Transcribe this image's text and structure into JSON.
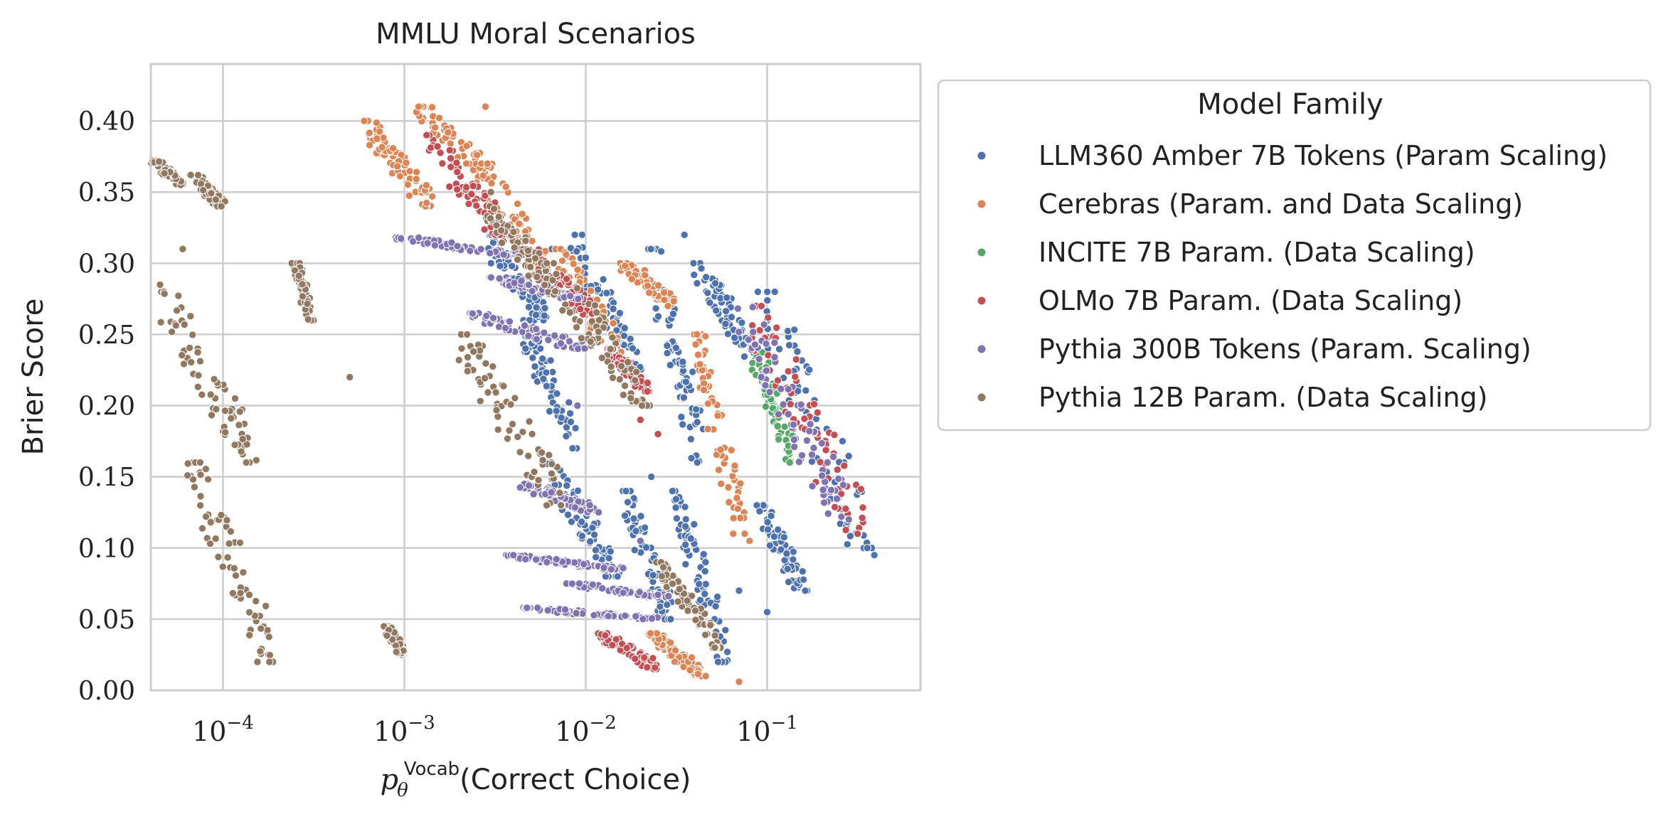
{
  "chart_data": {
    "type": "scatter",
    "title": "MMLU Moral Scenarios",
    "xlabel": {
      "prefix": "p",
      "sub": "θ",
      "sup": "Vocab",
      "text": "(Correct Choice)"
    },
    "ylabel": "Brier Score",
    "x_scale": "log",
    "xlim": [
      4e-05,
      0.7
    ],
    "ylim": [
      0,
      0.44
    ],
    "x_ticks": [
      {
        "value": 0.0001,
        "base": "10",
        "exp": "−4"
      },
      {
        "value": 0.001,
        "base": "10",
        "exp": "−3"
      },
      {
        "value": 0.01,
        "base": "10",
        "exp": "−2"
      },
      {
        "value": 0.1,
        "base": "10",
        "exp": "−1"
      }
    ],
    "y_ticks": [
      {
        "value": 0.0,
        "label": "0.00"
      },
      {
        "value": 0.05,
        "label": "0.05"
      },
      {
        "value": 0.1,
        "label": "0.10"
      },
      {
        "value": 0.15,
        "label": "0.15"
      },
      {
        "value": 0.2,
        "label": "0.20"
      },
      {
        "value": 0.25,
        "label": "0.25"
      },
      {
        "value": 0.3,
        "label": "0.30"
      },
      {
        "value": 0.35,
        "label": "0.35"
      },
      {
        "value": 0.4,
        "label": "0.40"
      }
    ],
    "grid": true,
    "legend": {
      "title": "Model Family",
      "position": "outside-right"
    },
    "series": [
      {
        "name": "LLM360 Amber 7B Tokens (Param Scaling)",
        "color": "#4c72b0",
        "clusters": [
          {
            "x": [
              0.0028,
              0.006
            ],
            "y": [
              0.26,
              0.32
            ]
          },
          {
            "x": [
              0.0045,
              0.009
            ],
            "y": [
              0.17,
              0.26
            ]
          },
          {
            "x": [
              0.008,
              0.02
            ],
            "y": [
              0.22,
              0.32
            ]
          },
          {
            "x": [
              0.006,
              0.015
            ],
            "y": [
              0.08,
              0.16
            ]
          },
          {
            "x": [
              0.016,
              0.03
            ],
            "y": [
              0.05,
              0.14
            ]
          },
          {
            "x": [
              0.022,
              0.045
            ],
            "y": [
              0.16,
              0.31
            ]
          },
          {
            "x": [
              0.03,
              0.06
            ],
            "y": [
              0.02,
              0.14
            ]
          },
          {
            "x": [
              0.04,
              0.09
            ],
            "y": [
              0.23,
              0.3
            ]
          },
          {
            "x": [
              0.09,
              0.16
            ],
            "y": [
              0.07,
              0.13
            ]
          },
          {
            "x": [
              0.09,
              0.37
            ],
            "y": [
              0.1,
              0.28
            ]
          }
        ],
        "points": [
          [
            0.003,
            0.3
          ],
          [
            0.0065,
            0.31
          ],
          [
            0.023,
            0.15
          ],
          [
            0.035,
            0.32
          ],
          [
            0.1,
            0.055
          ],
          [
            0.39,
            0.095
          ],
          [
            0.07,
            0.07
          ]
        ]
      },
      {
        "name": "Cerebras (Param. and Data Scaling)",
        "color": "#dd8452",
        "clusters": [
          {
            "x": [
              0.0006,
              0.0014
            ],
            "y": [
              0.34,
              0.4
            ]
          },
          {
            "x": [
              0.0012,
              0.003
            ],
            "y": [
              0.36,
              0.41
            ]
          },
          {
            "x": [
              0.0025,
              0.007
            ],
            "y": [
              0.28,
              0.37
            ]
          },
          {
            "x": [
              0.007,
              0.016
            ],
            "y": [
              0.23,
              0.31
            ]
          },
          {
            "x": [
              0.016,
              0.032
            ],
            "y": [
              0.27,
              0.3
            ]
          },
          {
            "x": [
              0.04,
              0.075
            ],
            "y": [
              0.11,
              0.25
            ]
          },
          {
            "x": [
              0.022,
              0.045
            ],
            "y": [
              0.01,
              0.04
            ]
          }
        ],
        "points": [
          [
            0.0006,
            0.4
          ],
          [
            0.0028,
            0.41
          ],
          [
            0.07,
            0.006
          ],
          [
            0.08,
            0.105
          ]
        ]
      },
      {
        "name": "INCITE 7B Param. (Data Scaling)",
        "color": "#55a868",
        "clusters": [
          {
            "x": [
              0.085,
              0.14
            ],
            "y": [
              0.16,
              0.24
            ]
          }
        ],
        "points": []
      },
      {
        "name": "OLMo 7B Param. (Data Scaling)",
        "color": "#c44e52",
        "clusters": [
          {
            "x": [
              0.0013,
              0.0035
            ],
            "y": [
              0.32,
              0.39
            ]
          },
          {
            "x": [
              0.0045,
              0.012
            ],
            "y": [
              0.26,
              0.31
            ]
          },
          {
            "x": [
              0.012,
              0.025
            ],
            "y": [
              0.015,
              0.04
            ]
          },
          {
            "x": [
              0.013,
              0.022
            ],
            "y": [
              0.21,
              0.24
            ]
          },
          {
            "x": [
              0.08,
              0.34
            ],
            "y": [
              0.11,
              0.27
            ]
          }
        ],
        "points": [
          [
            0.025,
            0.18
          ],
          [
            0.02,
            0.19
          ]
        ]
      },
      {
        "name": "Pythia 300B Tokens (Param. Scaling)",
        "color": "#8172b3",
        "clusters": [
          {
            "x": [
              0.0009,
              0.005
            ],
            "y": [
              0.305,
              0.318
            ]
          },
          {
            "x": [
              0.003,
              0.009
            ],
            "y": [
              0.275,
              0.29
            ]
          },
          {
            "x": [
              0.0022,
              0.01
            ],
            "y": [
              0.24,
              0.265
            ]
          },
          {
            "x": [
              0.0045,
              0.012
            ],
            "y": [
              0.125,
              0.145
            ]
          },
          {
            "x": [
              0.0035,
              0.016
            ],
            "y": [
              0.085,
              0.095
            ]
          },
          {
            "x": [
              0.0045,
              0.025
            ],
            "y": [
              0.05,
              0.058
            ]
          },
          {
            "x": [
              0.008,
              0.03
            ],
            "y": [
              0.065,
              0.075
            ]
          },
          {
            "x": [
              0.07,
              0.28
            ],
            "y": [
              0.12,
              0.27
            ]
          }
        ],
        "points": [
          [
            0.0012,
            0.318
          ],
          [
            0.009,
            0.2
          ],
          [
            0.02,
            0.105
          ]
        ]
      },
      {
        "name": "Pythia 12B Param. (Data Scaling)",
        "color": "#937860",
        "clusters": [
          {
            "x": [
              4.2e-05,
              6e-05
            ],
            "y": [
              0.355,
              0.372
            ]
          },
          {
            "x": [
              6.8e-05,
              0.0001
            ],
            "y": [
              0.34,
              0.362
            ]
          },
          {
            "x": [
              4.5e-05,
              0.00015
            ],
            "y": [
              0.16,
              0.28
            ]
          },
          {
            "x": [
              6.5e-05,
              0.00019
            ],
            "y": [
              0.02,
              0.16
            ]
          },
          {
            "x": [
              0.00025,
              0.00031
            ],
            "y": [
              0.26,
              0.3
            ]
          },
          {
            "x": [
              0.0008,
              0.001
            ],
            "y": [
              0.025,
              0.045
            ]
          },
          {
            "x": [
              0.002,
              0.0075
            ],
            "y": [
              0.13,
              0.25
            ]
          },
          {
            "x": [
              0.0028,
              0.007
            ],
            "y": [
              0.28,
              0.34
            ]
          },
          {
            "x": [
              0.006,
              0.022
            ],
            "y": [
              0.2,
              0.3
            ]
          },
          {
            "x": [
              0.025,
              0.055
            ],
            "y": [
              0.03,
              0.09
            ]
          }
        ],
        "points": [
          [
            4.5e-05,
            0.285
          ],
          [
            6e-05,
            0.31
          ],
          [
            0.0005,
            0.22
          ],
          [
            0.003,
            0.35
          ]
        ]
      }
    ]
  }
}
